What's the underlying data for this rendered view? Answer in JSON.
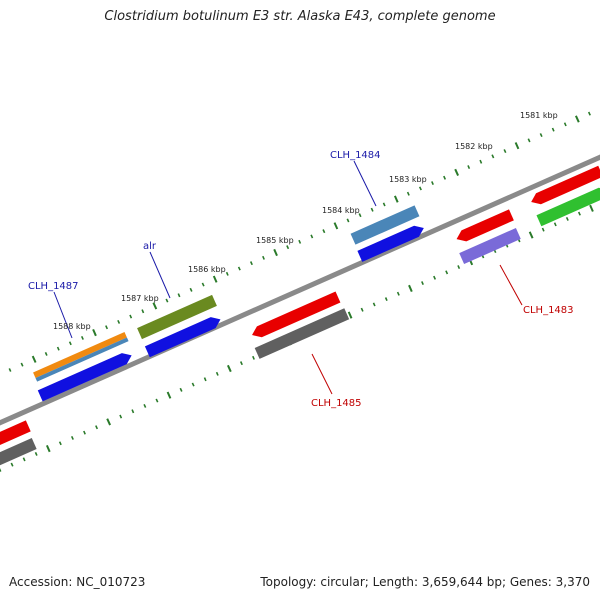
{
  "title": "Clostridium botulinum E3 str. Alaska E43, complete genome",
  "footer": {
    "accession": "Accession: NC_010723",
    "summary": "Topology: circular; Length: 3,659,644 bp; Genes: 3,370"
  },
  "colors": {
    "backbone": "#8a8a8a",
    "tick": "#2a7a2a",
    "label_blue": "#1a1aa8",
    "label_red": "#c00000",
    "gene_orange": "#f08a10",
    "gene_steelblue": "#4a86b8",
    "gene_blue": "#1010e0",
    "gene_olive": "#6a8a20",
    "gene_red": "#e80000",
    "gene_gray": "#606060",
    "gene_purple": "#7a6ad8",
    "gene_green": "#30c030"
  },
  "tick_labels": [
    "1581 kbp",
    "1582 kbp",
    "1583 kbp",
    "1584 kbp",
    "1585 kbp",
    "1586 kbp",
    "1587 kbp",
    "1588 kbp"
  ],
  "gene_labels": {
    "clh_1484": "CLH_1484",
    "alr": "alr",
    "clh_1487": "CLH_1487",
    "clh_1483": "CLH_1483",
    "clh_1485": "CLH_1485"
  }
}
